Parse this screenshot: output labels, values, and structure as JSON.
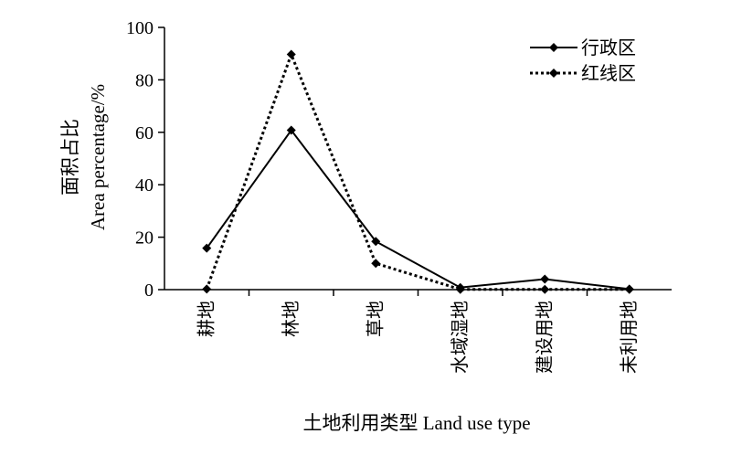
{
  "chart_data": {
    "type": "line",
    "categories": [
      "耕地",
      "林地",
      "草地",
      "水域湿地",
      "建设用地",
      "未利用地"
    ],
    "series": [
      {
        "name": "行政区",
        "values": [
          15.8,
          60.8,
          18.4,
          0.8,
          4.0,
          0.2
        ],
        "style": "solid",
        "marker": "diamond",
        "color": "#000000"
      },
      {
        "name": "红线区",
        "values": [
          0.2,
          89.7,
          10.0,
          0.1,
          0.1,
          0.1
        ],
        "style": "dotted",
        "marker": "diamond",
        "color": "#000000"
      }
    ],
    "y_ticks": [
      0,
      20,
      40,
      60,
      80,
      100
    ],
    "ylim": [
      0,
      100
    ],
    "ylabel": [
      "面积占比",
      "Area percentage/%"
    ],
    "xlabel": "土地利用类型 Land use type",
    "legend_position": "top-right",
    "grid": false
  }
}
